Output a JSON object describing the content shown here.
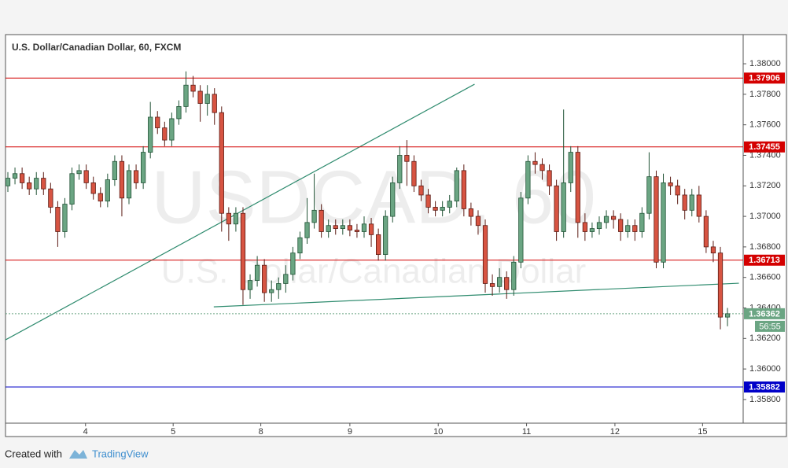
{
  "chart_data": {
    "type": "candlestick",
    "title": "U.S. Dollar/Canadian Dollar, 60, FXCM",
    "watermark": "USDCAD, 60",
    "watermark_subtitle": "U.S. Dollar/Canadian Dollar",
    "footer": {
      "prefix": "Created with",
      "brand": "TradingView"
    },
    "up_color": "#6ba583",
    "down_color": "#d75442",
    "up_border": "#225437",
    "down_border": "#5b1a13",
    "x": [
      0,
      1,
      2,
      3,
      4,
      5,
      6,
      7,
      8,
      9,
      10,
      11,
      12,
      13,
      14,
      15,
      16,
      17,
      18,
      19,
      20,
      21,
      22,
      23,
      24,
      25,
      26,
      27,
      28,
      29,
      30,
      31,
      32,
      33,
      34,
      35,
      36,
      37,
      38,
      39,
      40,
      41,
      42,
      43,
      44,
      45,
      46,
      47,
      48,
      49,
      50,
      51,
      52,
      53,
      54,
      55,
      56,
      57,
      58,
      59,
      60,
      61,
      62,
      63,
      64,
      65,
      66,
      67,
      68,
      69,
      70,
      71,
      72,
      73,
      74,
      75,
      76,
      77,
      78,
      79,
      80,
      81,
      82,
      83,
      84,
      85,
      86,
      87,
      88,
      89,
      90,
      91,
      92,
      93,
      94,
      95,
      96,
      97,
      98,
      99,
      100,
      101
    ],
    "open": [
      1.372,
      1.3725,
      1.3728,
      1.3722,
      1.3718,
      1.3725,
      1.3718,
      1.3706,
      1.369,
      1.3708,
      1.3728,
      1.373,
      1.3722,
      1.3715,
      1.371,
      1.3724,
      1.3736,
      1.3712,
      1.373,
      1.3722,
      1.3742,
      1.3765,
      1.3758,
      1.375,
      1.3764,
      1.3772,
      1.3786,
      1.3782,
      1.3774,
      1.378,
      1.3768,
      1.3702,
      1.3695,
      1.3702,
      1.3652,
      1.3658,
      1.3668,
      1.365,
      1.3652,
      1.3656,
      1.3662,
      1.3676,
      1.3686,
      1.3696,
      1.3704,
      1.369,
      1.3694,
      1.3692,
      1.3694,
      1.3691,
      1.369,
      1.3695,
      1.3688,
      1.3675,
      1.37,
      1.3722,
      1.374,
      1.3736,
      1.372,
      1.3714,
      1.3706,
      1.3704,
      1.3706,
      1.371,
      1.373,
      1.3705,
      1.37,
      1.3694,
      1.3656,
      1.3654,
      1.366,
      1.3652,
      1.367,
      1.3712,
      1.3736,
      1.3734,
      1.373,
      1.372,
      1.369,
      1.3722,
      1.3742,
      1.3696,
      1.369,
      1.3692,
      1.3696,
      1.37,
      1.3698,
      1.369,
      1.3694,
      1.369,
      1.3702,
      1.3726,
      1.367,
      1.3722,
      1.372,
      1.3714,
      1.3704,
      1.3714,
      1.37,
      1.368,
      1.3676,
      1.3634
    ],
    "high": [
      1.3729,
      1.3732,
      1.3732,
      1.3726,
      1.3729,
      1.3729,
      1.3722,
      1.371,
      1.3712,
      1.3732,
      1.3734,
      1.3734,
      1.3726,
      1.3719,
      1.3728,
      1.374,
      1.374,
      1.3734,
      1.3734,
      1.3746,
      1.3775,
      1.3769,
      1.3762,
      1.3768,
      1.3776,
      1.3795,
      1.3792,
      1.3786,
      1.3786,
      1.3784,
      1.3772,
      1.3706,
      1.3706,
      1.3706,
      1.3662,
      1.3674,
      1.3672,
      1.3658,
      1.366,
      1.3668,
      1.368,
      1.369,
      1.3712,
      1.3728,
      1.3708,
      1.3698,
      1.3698,
      1.3698,
      1.3698,
      1.3695,
      1.37,
      1.3699,
      1.3692,
      1.3704,
      1.3726,
      1.3746,
      1.375,
      1.374,
      1.3724,
      1.3718,
      1.371,
      1.371,
      1.3714,
      1.3732,
      1.3734,
      1.3709,
      1.3704,
      1.3698,
      1.3662,
      1.3666,
      1.3664,
      1.3674,
      1.3716,
      1.374,
      1.3742,
      1.3738,
      1.3734,
      1.3724,
      1.377,
      1.3746,
      1.3746,
      1.3702,
      1.3696,
      1.37,
      1.3704,
      1.3704,
      1.3702,
      1.3698,
      1.3698,
      1.3706,
      1.3742,
      1.373,
      1.3728,
      1.3726,
      1.3724,
      1.3718,
      1.3718,
      1.372,
      1.3704,
      1.3684,
      1.368,
      1.364
    ],
    "low": [
      1.3716,
      1.3721,
      1.3718,
      1.3714,
      1.3714,
      1.3714,
      1.3702,
      1.368,
      1.3686,
      1.3704,
      1.3724,
      1.3718,
      1.3711,
      1.3706,
      1.3706,
      1.372,
      1.37,
      1.3708,
      1.3718,
      1.3718,
      1.3738,
      1.3754,
      1.3746,
      1.3746,
      1.376,
      1.3768,
      1.3778,
      1.3762,
      1.3766,
      1.376,
      1.369,
      1.3684,
      1.369,
      1.3642,
      1.3646,
      1.3654,
      1.3644,
      1.3644,
      1.3646,
      1.365,
      1.3658,
      1.3672,
      1.3682,
      1.3692,
      1.3686,
      1.3686,
      1.3688,
      1.3688,
      1.3687,
      1.3686,
      1.3686,
      1.368,
      1.3671,
      1.3671,
      1.3696,
      1.3718,
      1.372,
      1.3716,
      1.371,
      1.3702,
      1.37,
      1.37,
      1.3702,
      1.3706,
      1.37,
      1.3694,
      1.3688,
      1.365,
      1.3648,
      1.365,
      1.3646,
      1.3648,
      1.3666,
      1.3708,
      1.3728,
      1.3724,
      1.3714,
      1.3684,
      1.3686,
      1.3716,
      1.3686,
      1.3684,
      1.3686,
      1.3688,
      1.3692,
      1.3692,
      1.3684,
      1.3686,
      1.3684,
      1.3686,
      1.3698,
      1.3666,
      1.3666,
      1.3714,
      1.3708,
      1.3698,
      1.37,
      1.3696,
      1.3676,
      1.367,
      1.3626,
      1.3628
    ],
    "close": [
      1.3725,
      1.3728,
      1.3722,
      1.3718,
      1.3725,
      1.3718,
      1.3706,
      1.369,
      1.3708,
      1.3728,
      1.373,
      1.3722,
      1.3715,
      1.371,
      1.3724,
      1.3736,
      1.3712,
      1.373,
      1.3722,
      1.3742,
      1.3765,
      1.3758,
      1.375,
      1.3764,
      1.3772,
      1.3786,
      1.3782,
      1.3774,
      1.378,
      1.3768,
      1.3702,
      1.3695,
      1.3702,
      1.3652,
      1.3658,
      1.3668,
      1.365,
      1.3652,
      1.3656,
      1.3662,
      1.3676,
      1.3686,
      1.3696,
      1.3704,
      1.369,
      1.3694,
      1.3692,
      1.3694,
      1.3691,
      1.369,
      1.3695,
      1.3688,
      1.3675,
      1.37,
      1.3722,
      1.374,
      1.3736,
      1.372,
      1.3714,
      1.3706,
      1.3704,
      1.3706,
      1.371,
      1.373,
      1.3705,
      1.37,
      1.3694,
      1.3656,
      1.3654,
      1.366,
      1.3652,
      1.367,
      1.3712,
      1.3736,
      1.3734,
      1.373,
      1.372,
      1.369,
      1.3722,
      1.3742,
      1.3696,
      1.369,
      1.3692,
      1.3696,
      1.37,
      1.3698,
      1.369,
      1.3694,
      1.369,
      1.3702,
      1.3726,
      1.367,
      1.3722,
      1.372,
      1.3714,
      1.3704,
      1.3714,
      1.37,
      1.368,
      1.3676,
      1.3634,
      1.36362
    ],
    "xlim": [
      -0.33,
      103.2
    ],
    "xticks": [
      {
        "value": 10.9,
        "label": "4"
      },
      {
        "value": 23.2,
        "label": "5"
      },
      {
        "value": 35.5,
        "label": "8"
      },
      {
        "value": 48.0,
        "label": "9"
      },
      {
        "value": 60.4,
        "label": "10"
      },
      {
        "value": 72.8,
        "label": "11"
      },
      {
        "value": 85.2,
        "label": "12"
      },
      {
        "value": 97.5,
        "label": "15"
      }
    ],
    "ylim": [
      1.35645,
      1.38191
    ],
    "yticks": [
      {
        "value": 1.358,
        "label": "1.35800"
      },
      {
        "value": 1.36,
        "label": "1.36000"
      },
      {
        "value": 1.362,
        "label": "1.36200"
      },
      {
        "value": 1.364,
        "label": "1.36400"
      },
      {
        "value": 1.366,
        "label": "1.36600"
      },
      {
        "value": 1.368,
        "label": "1.36800"
      },
      {
        "value": 1.37,
        "label": "1.37000"
      },
      {
        "value": 1.372,
        "label": "1.37200"
      },
      {
        "value": 1.374,
        "label": "1.37400"
      },
      {
        "value": 1.376,
        "label": "1.37600"
      },
      {
        "value": 1.378,
        "label": "1.37800"
      },
      {
        "value": 1.38,
        "label": "1.38000"
      }
    ],
    "levels": [
      {
        "value": 1.37906,
        "color": "#d40000"
      },
      {
        "value": 1.37455,
        "color": "#d40000"
      },
      {
        "value": 1.36713,
        "color": "#d40000"
      },
      {
        "value": 1.35882,
        "color": "#0000c8"
      }
    ],
    "current_price": {
      "value": 1.36362,
      "color": "#6ba583",
      "countdown": "56:55"
    },
    "trend_lines": [
      {
        "x": [
          -0.33,
          65.5
        ],
        "y": [
          1.36191,
          1.37866
        ],
        "color": "#2e8b6e"
      },
      {
        "x": [
          28.9,
          102.6
        ],
        "y": [
          1.36407,
          1.36562
        ],
        "color": "#2e8b6e"
      }
    ]
  }
}
